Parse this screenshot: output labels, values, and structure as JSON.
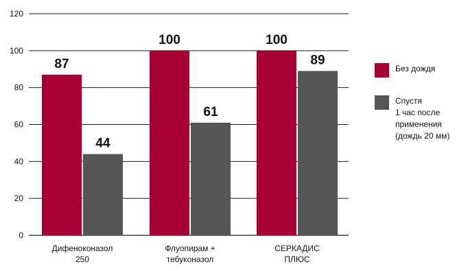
{
  "chart_data": {
    "type": "bar",
    "title": "",
    "xlabel": "",
    "ylabel": "",
    "categories": [
      "Дифеноконазол\n250",
      "Флуопирам +\nтебуконазол",
      "СЕРКАДИС\nПЛЮС"
    ],
    "ylim": [
      0,
      120
    ],
    "yticks": [
      0,
      20,
      40,
      60,
      80,
      100,
      120
    ],
    "grid": true,
    "legend_position": "right",
    "series": [
      {
        "name": "Без дождя",
        "color": "#A50034",
        "values": [
          87,
          100,
          100
        ]
      },
      {
        "name": "Спустя\n1 час после\nприменения\n(дождь 20 мм)",
        "color": "#555555",
        "values": [
          44,
          61,
          89
        ]
      }
    ]
  }
}
